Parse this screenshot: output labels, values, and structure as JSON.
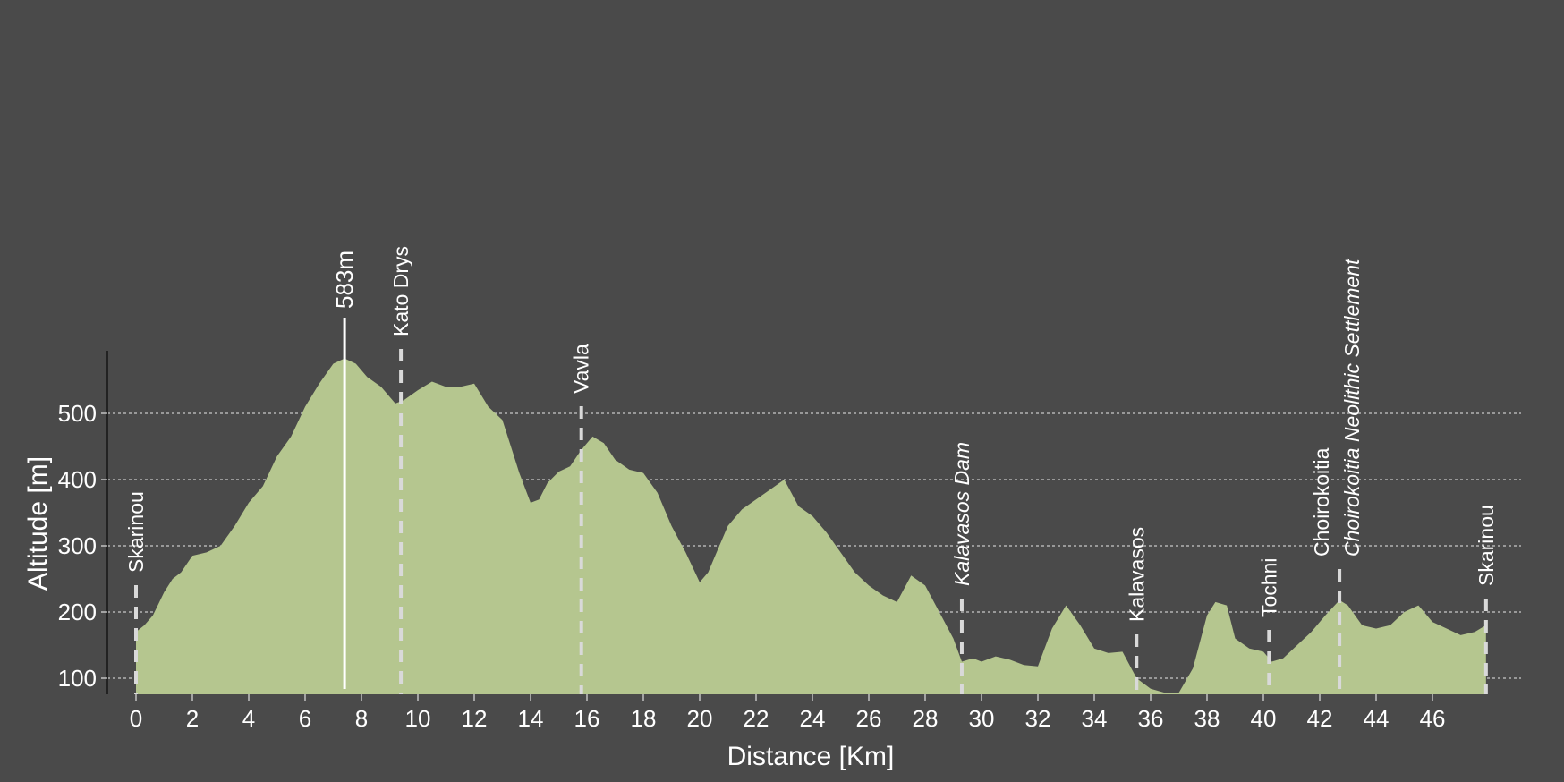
{
  "chart_data": {
    "type": "area",
    "xlabel": "Distance [Km]",
    "ylabel": "Altitude [m]",
    "xlim": [
      -0.8,
      49
    ],
    "ylim": [
      75,
      595
    ],
    "x_ticks": [
      0,
      2,
      4,
      6,
      8,
      10,
      12,
      14,
      16,
      18,
      20,
      22,
      24,
      26,
      28,
      30,
      32,
      34,
      36,
      38,
      40,
      42,
      44,
      46
    ],
    "y_ticks": [
      100,
      200,
      300,
      400,
      500
    ],
    "grid": "horizontal dashed",
    "colors": {
      "background": "#4a4a4a",
      "fill": "#b5c68f",
      "text": "#ffffff",
      "marker": "#d9d9d9"
    },
    "series": [
      {
        "x": [
          0,
          0.3,
          0.6,
          1,
          1.3,
          1.6,
          2,
          2.5,
          3,
          3.5,
          4,
          4.5,
          5,
          5.5,
          6,
          6.5,
          7,
          7.4,
          7.8,
          8.2,
          8.7,
          9.2,
          9.5,
          10,
          10.5,
          11,
          11.5,
          12,
          12.5,
          13,
          13.3,
          13.6,
          14,
          14.3,
          14.6,
          15,
          15.4,
          15.8,
          16.2,
          16.6,
          17,
          17.5,
          18,
          18.5,
          19,
          19.5,
          20,
          20.3,
          20.7,
          21,
          21.5,
          22,
          22.5,
          23,
          23.5,
          24,
          24.5,
          25,
          25.5,
          26,
          26.5,
          27,
          27.5,
          28,
          28.5,
          29,
          29.3,
          29.7,
          30,
          30.5,
          31,
          31.5,
          32,
          32.5,
          33,
          33.5,
          34,
          34.5,
          35,
          35.5,
          36,
          36.5,
          37,
          37.5,
          38,
          38.3,
          38.7,
          39,
          39.5,
          40,
          40.3,
          40.7,
          41.2,
          41.7,
          42.2,
          42.7,
          43,
          43.5,
          44,
          44.5,
          45,
          45.5,
          46,
          46.5,
          47,
          47.5,
          47.9
        ],
        "y": [
          170,
          180,
          195,
          230,
          250,
          260,
          285,
          290,
          300,
          330,
          365,
          390,
          435,
          465,
          510,
          545,
          575,
          583,
          575,
          555,
          540,
          515,
          520,
          535,
          548,
          540,
          540,
          545,
          510,
          490,
          450,
          410,
          365,
          370,
          395,
          412,
          420,
          445,
          465,
          455,
          430,
          415,
          410,
          380,
          330,
          290,
          245,
          260,
          300,
          330,
          355,
          370,
          385,
          400,
          360,
          345,
          320,
          290,
          260,
          240,
          225,
          215,
          255,
          240,
          200,
          160,
          125,
          130,
          125,
          133,
          128,
          120,
          118,
          175,
          210,
          180,
          145,
          138,
          140,
          100,
          84,
          78,
          78,
          115,
          195,
          215,
          210,
          160,
          145,
          140,
          125,
          130,
          150,
          170,
          195,
          218,
          210,
          180,
          175,
          180,
          200,
          210,
          185,
          175,
          165,
          170,
          180
        ]
      }
    ],
    "peak": {
      "x": 7.4,
      "label": "583m"
    },
    "waypoints": [
      {
        "x": 0.0,
        "label": "Skarinou",
        "italic": false
      },
      {
        "x": 9.4,
        "label": "Kato Drys",
        "italic": false
      },
      {
        "x": 15.8,
        "label": "Vavla",
        "italic": false
      },
      {
        "x": 29.3,
        "label": "Kalavasos Dam",
        "italic": true
      },
      {
        "x": 35.5,
        "label": "Kalavasos",
        "italic": false
      },
      {
        "x": 40.2,
        "label": "Tochni",
        "italic": false
      },
      {
        "x": 42.7,
        "label": "Choirokoitia",
        "italic": false
      },
      {
        "x": 42.7,
        "label": "Choirokoitia Neolithic Settlement",
        "italic": true
      },
      {
        "x": 47.9,
        "label": "Skarinou",
        "italic": false
      }
    ]
  }
}
